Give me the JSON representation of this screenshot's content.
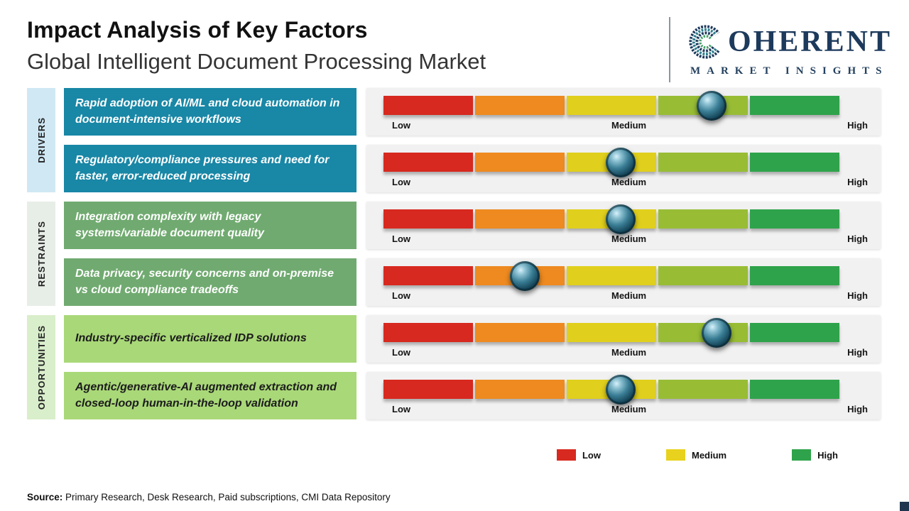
{
  "header": {
    "title": "Impact Analysis of Key Factors",
    "subtitle": "Global Intelligent Document Processing Market"
  },
  "logo": {
    "alt": "Coherent Market Insights",
    "line1": "OHERENT",
    "line2": "MARKET INSIGHTS"
  },
  "scale": {
    "low": "Low",
    "medium": "Medium",
    "high": "High"
  },
  "groups": [
    {
      "label": "DRIVERS",
      "items": [
        {
          "text": "Rapid adoption of AI/ML and cloud automation in document-intensive workflows",
          "impact_pct": 72
        },
        {
          "text": "Regulatory/compliance pressures and need for faster, error-reduced processing",
          "impact_pct": 52
        }
      ]
    },
    {
      "label": "RESTRAINTS",
      "items": [
        {
          "text": "Integration complexity with legacy systems/variable document quality",
          "impact_pct": 52
        },
        {
          "text": "Data privacy, security concerns and on-premise vs cloud compliance tradeoffs",
          "impact_pct": 31
        }
      ]
    },
    {
      "label": "OPPORTUNITIES",
      "items": [
        {
          "text": "Industry-specific verticalized IDP solutions",
          "impact_pct": 73
        },
        {
          "text": "Agentic/generative-AI augmented extraction and closed-loop human-in-the-loop validation",
          "impact_pct": 52
        }
      ]
    }
  ],
  "legend": {
    "items": [
      {
        "label": "Low",
        "color": "#d7291f"
      },
      {
        "label": "Medium",
        "color": "#e8d21d"
      },
      {
        "label": "High",
        "color": "#2fa34b"
      }
    ]
  },
  "source": {
    "label": "Source:",
    "text": " Primary Research, Desk Research, Paid subscriptions, CMI Data Repository"
  },
  "colors": {
    "drivers_box": "#1987a6",
    "restraints_box": "#70aa70",
    "opportunities_box": "#a9d878",
    "drivers_strip": "#cfe8f4",
    "restraints_strip": "#e7ede7",
    "opportunities_strip": "#d9eecb",
    "bar_segments": [
      "#d7291f",
      "#ee8a20",
      "#e0cf1c",
      "#98bd35",
      "#2fa34b"
    ],
    "knob": "#16465a",
    "logo_navy": "#1d3a5c"
  },
  "chart_data": {
    "type": "bar",
    "title": "Impact Analysis of Key Factors",
    "subtitle": "Global Intelligent Document Processing Market",
    "scale": [
      "Low",
      "Medium",
      "High"
    ],
    "xlim_pct": [
      0,
      100
    ],
    "series": [
      {
        "category": "Drivers",
        "factor": "Rapid adoption of AI/ML and cloud automation in document-intensive workflows",
        "impact_pct": 72,
        "impact_level": "Medium-High"
      },
      {
        "category": "Drivers",
        "factor": "Regulatory/compliance pressures and need for faster, error-reduced processing",
        "impact_pct": 52,
        "impact_level": "Medium"
      },
      {
        "category": "Restraints",
        "factor": "Integration complexity with legacy systems/variable document quality",
        "impact_pct": 52,
        "impact_level": "Medium"
      },
      {
        "category": "Restraints",
        "factor": "Data privacy, security concerns and on-premise vs cloud compliance tradeoffs",
        "impact_pct": 31,
        "impact_level": "Low-Medium"
      },
      {
        "category": "Opportunities",
        "factor": "Industry-specific verticalized IDP solutions",
        "impact_pct": 73,
        "impact_level": "Medium-High"
      },
      {
        "category": "Opportunities",
        "factor": "Agentic/generative-AI augmented extraction and closed-loop human-in-the-loop validation",
        "impact_pct": 52,
        "impact_level": "Medium"
      }
    ],
    "legend": [
      "Low",
      "Medium",
      "High"
    ],
    "legend_colors": [
      "#d7291f",
      "#e8d21d",
      "#2fa34b"
    ],
    "legend_position": "bottom-right",
    "grid": false
  }
}
